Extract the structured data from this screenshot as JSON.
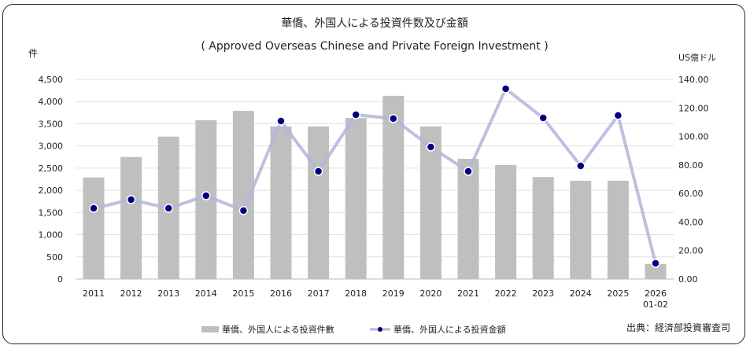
{
  "chart_data": {
    "type": "bar+line",
    "title": "華僑、外国人による投資件数及び金額",
    "subtitle": "( Approved Overseas Chinese and Private Foreign Investment )",
    "ylabel_left": "件",
    "ylabel_right": "US億ドル",
    "categories": [
      "2011",
      "2012",
      "2013",
      "2014",
      "2015",
      "2016",
      "2017",
      "2018",
      "2019",
      "2020",
      "2021",
      "2022",
      "2023",
      "2024",
      "2025",
      "2026\n01-02"
    ],
    "y_left": {
      "range": [
        0,
        4500
      ],
      "ticks": [
        "0",
        "500",
        "1,000",
        "1,500",
        "2,000",
        "2,500",
        "3,000",
        "3,500",
        "4,000",
        "4,500"
      ]
    },
    "y_right": {
      "range": [
        0,
        140
      ],
      "ticks": [
        "0.00",
        "20.00",
        "40.00",
        "60.00",
        "80.00",
        "100.00",
        "120.00",
        "140.00"
      ]
    },
    "grid": true,
    "legend_placement": "bottom",
    "series": [
      {
        "name": "華僑、外国人による投資件數",
        "type": "bar",
        "axis": "left",
        "color": "#bfbfbf",
        "values": [
          2290,
          2750,
          3210,
          3580,
          3790,
          3440,
          3440,
          3630,
          4130,
          3440,
          2710,
          2570,
          2300,
          2215,
          2215,
          340
        ]
      },
      {
        "name": "華僑、外国人による投資金額",
        "type": "line",
        "axis": "right",
        "color": "#b4b4dc",
        "marker_color": "#00007f",
        "values": [
          49.6,
          55.7,
          49.6,
          58.4,
          48.0,
          110.8,
          75.5,
          115.2,
          112.5,
          92.6,
          75.5,
          133.4,
          113.0,
          79.4,
          114.7,
          11.0
        ]
      }
    ],
    "source": "出典：経済部投資審査司"
  }
}
